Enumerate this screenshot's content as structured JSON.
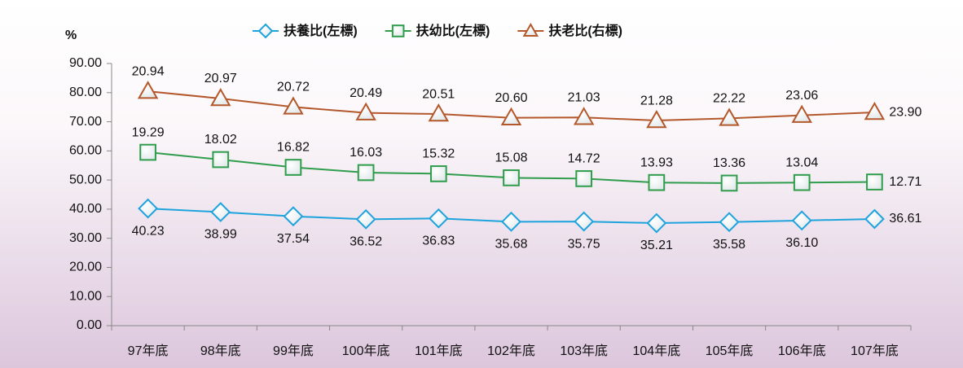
{
  "chart_data": {
    "type": "line",
    "stacked": true,
    "y_label": "%",
    "categories": [
      "97年底",
      "98年底",
      "99年底",
      "100年底",
      "101年底",
      "102年底",
      "103年底",
      "104年底",
      "105年底",
      "106年底",
      "107年底"
    ],
    "series": [
      {
        "name": "扶養比(左標)",
        "color": "#1fa3dc",
        "marker": "diamond",
        "values": [
          40.23,
          38.99,
          37.54,
          36.52,
          36.83,
          35.68,
          35.75,
          35.21,
          35.58,
          36.1,
          36.61
        ],
        "value_labels": [
          "40.23",
          "38.99",
          "37.54",
          "36.52",
          "36.83",
          "35.68",
          "35.75",
          "35.21",
          "35.58",
          "36.10",
          "36.61"
        ]
      },
      {
        "name": "扶幼比(左標)",
        "color": "#2f9d4b",
        "marker": "square",
        "values": [
          19.29,
          18.02,
          16.82,
          16.03,
          15.32,
          15.08,
          14.72,
          13.93,
          13.36,
          13.04,
          12.71
        ],
        "value_labels": [
          "19.29",
          "18.02",
          "16.82",
          "16.03",
          "15.32",
          "15.08",
          "14.72",
          "13.93",
          "13.36",
          "13.04",
          "12.71"
        ]
      },
      {
        "name": "扶老比(右標)",
        "color": "#b4582c",
        "marker": "triangle",
        "values": [
          20.94,
          20.97,
          20.72,
          20.49,
          20.51,
          20.6,
          21.03,
          21.28,
          22.22,
          23.06,
          23.9
        ],
        "value_labels": [
          "20.94",
          "20.97",
          "20.72",
          "20.49",
          "20.51",
          "20.60",
          "21.03",
          "21.28",
          "22.22",
          "23.06",
          "23.90"
        ]
      }
    ],
    "ylim": [
      0,
      90
    ],
    "yticks": [
      {
        "value": 0,
        "label": "0.00"
      },
      {
        "value": 10,
        "label": "10.00"
      },
      {
        "value": 20,
        "label": "20.00"
      },
      {
        "value": 30,
        "label": "30.00"
      },
      {
        "value": 40,
        "label": "40.00"
      },
      {
        "value": 50,
        "label": "50.00"
      },
      {
        "value": 60,
        "label": "60.00"
      },
      {
        "value": 70,
        "label": "70.00"
      },
      {
        "value": 80,
        "label": "80.00"
      },
      {
        "value": 90,
        "label": "90.00"
      }
    ]
  }
}
